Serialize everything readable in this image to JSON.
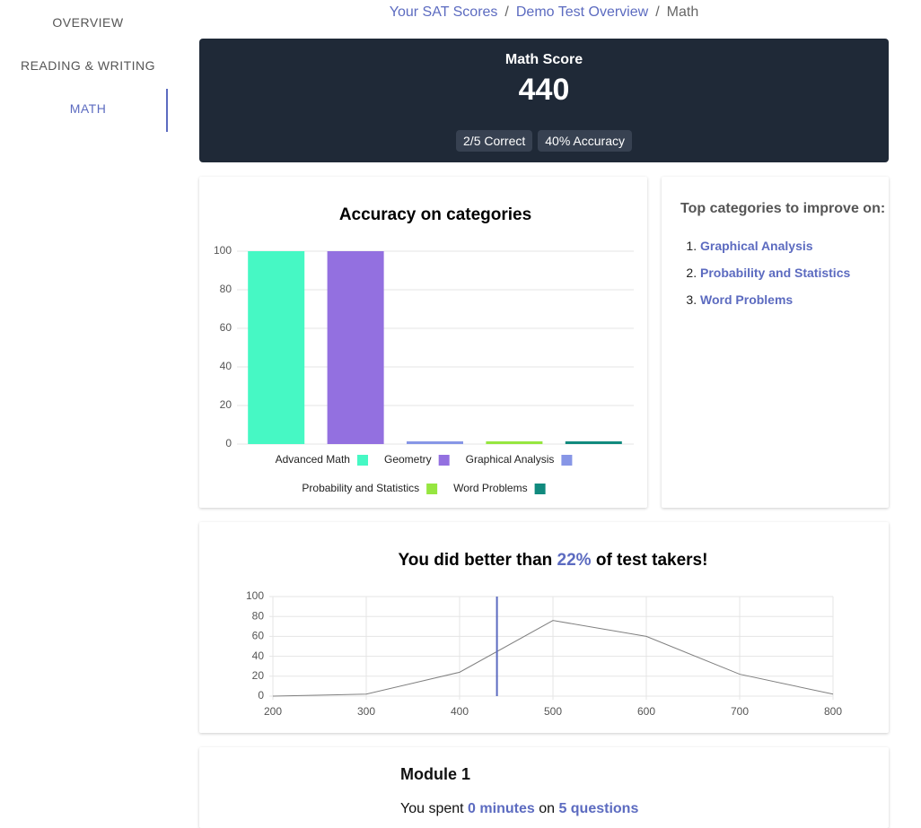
{
  "nav": {
    "items": [
      "OVERVIEW",
      "READING & WRITING",
      "MATH"
    ],
    "active": 2
  },
  "breadcrumb": {
    "items": [
      "Your SAT Scores",
      "Demo Test Overview",
      "Math"
    ],
    "separator": "/"
  },
  "score_card": {
    "label": "Math Score",
    "score": 440,
    "badges": [
      "2/5 Correct",
      "40% Accuracy"
    ]
  },
  "chart_data": [
    {
      "type": "bar",
      "title": "Accuracy on categories",
      "categories": [
        "Advanced Math",
        "Geometry",
        "Graphical Analysis",
        "Probability and Statistics",
        "Word Problems"
      ],
      "values": [
        100,
        100,
        0,
        0,
        0
      ],
      "colors": [
        "#46f8c4",
        "#9370e0",
        "#8796e6",
        "#96e640",
        "#118a7e"
      ],
      "ylim": [
        0,
        100
      ],
      "yticks": [
        0,
        20,
        40,
        60,
        80,
        100
      ],
      "grid": true
    },
    {
      "type": "line",
      "title_parts": [
        "You did better than",
        "22%",
        "of test takers!"
      ],
      "x": [
        200,
        300,
        400,
        500,
        600,
        700,
        800
      ],
      "values": [
        0,
        2,
        24,
        76,
        60,
        22,
        2
      ],
      "color": "#808080",
      "marker": 440,
      "marker_color": "#5c6bc0",
      "xlim": [
        200,
        800
      ],
      "xticks": [
        200,
        300,
        400,
        500,
        600,
        700,
        800
      ],
      "ylim": [
        0,
        100
      ],
      "yticks": [
        0,
        20,
        40,
        60,
        80,
        100
      ],
      "grid": true
    }
  ],
  "improve": {
    "title": "Top categories to improve on:",
    "items": [
      "Graphical Analysis",
      "Probability and Statistics",
      "Word Problems"
    ]
  },
  "module": {
    "title": "Module 1",
    "text": [
      "You spent",
      "0 minutes",
      "on",
      "5 questions"
    ]
  }
}
